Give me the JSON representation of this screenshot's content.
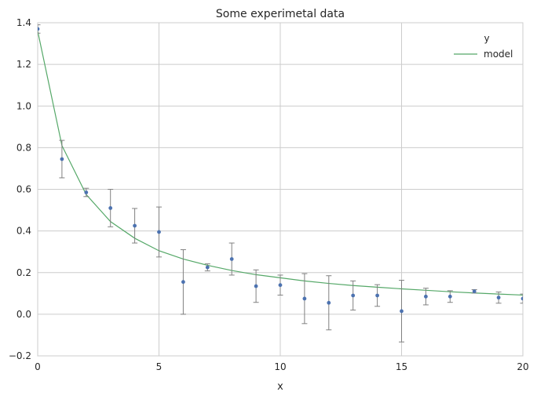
{
  "chart_data": {
    "type": "scatter",
    "title": "Some experimetal data",
    "xlabel": "x",
    "ylabel": "",
    "xlim": [
      0,
      20
    ],
    "ylim": [
      -0.2,
      1.4
    ],
    "xticks": [
      0,
      5,
      10,
      15,
      20
    ],
    "yticks": [
      -0.2,
      0.0,
      0.2,
      0.4,
      0.6,
      0.8,
      1.0,
      1.2,
      1.4
    ],
    "xtick_labels": [
      "0",
      "5",
      "10",
      "15",
      "20"
    ],
    "ytick_labels": [
      "−0.2",
      "0.0",
      "0.2",
      "0.4",
      "0.6",
      "0.8",
      "1.0",
      "1.2",
      "1.4"
    ],
    "grid": true,
    "legend_position": "top-right",
    "legend_title": "y",
    "series": [
      {
        "name": "",
        "kind": "errorbar",
        "color": "#4c72b0",
        "errorbar_color": "#808080",
        "x": [
          0,
          1,
          2,
          3,
          4,
          5,
          6,
          7,
          8,
          9,
          10,
          11,
          12,
          13,
          14,
          15,
          16,
          17,
          18,
          19,
          20
        ],
        "y": [
          1.37,
          0.745,
          0.585,
          0.51,
          0.425,
          0.395,
          0.155,
          0.225,
          0.265,
          0.135,
          0.14,
          0.075,
          0.055,
          0.09,
          0.09,
          0.015,
          0.085,
          0.085,
          0.11,
          0.08,
          0.075
        ],
        "err": [
          0.02,
          0.09,
          0.02,
          0.09,
          0.083,
          0.12,
          0.155,
          0.017,
          0.077,
          0.078,
          0.048,
          0.12,
          0.13,
          0.07,
          0.052,
          0.148,
          0.04,
          0.028,
          0.008,
          0.027,
          0.022
        ]
      },
      {
        "name": "model",
        "kind": "line",
        "color": "#55a868",
        "x": [
          0,
          1,
          2,
          3,
          4,
          5,
          6,
          7,
          8,
          9,
          10,
          11,
          12,
          13,
          14,
          15,
          16,
          17,
          18,
          19,
          20
        ],
        "y": [
          1.36,
          0.81,
          0.575,
          0.445,
          0.365,
          0.305,
          0.265,
          0.235,
          0.21,
          0.19,
          0.175,
          0.16,
          0.148,
          0.138,
          0.13,
          0.122,
          0.115,
          0.108,
          0.102,
          0.097,
          0.092
        ]
      }
    ]
  }
}
